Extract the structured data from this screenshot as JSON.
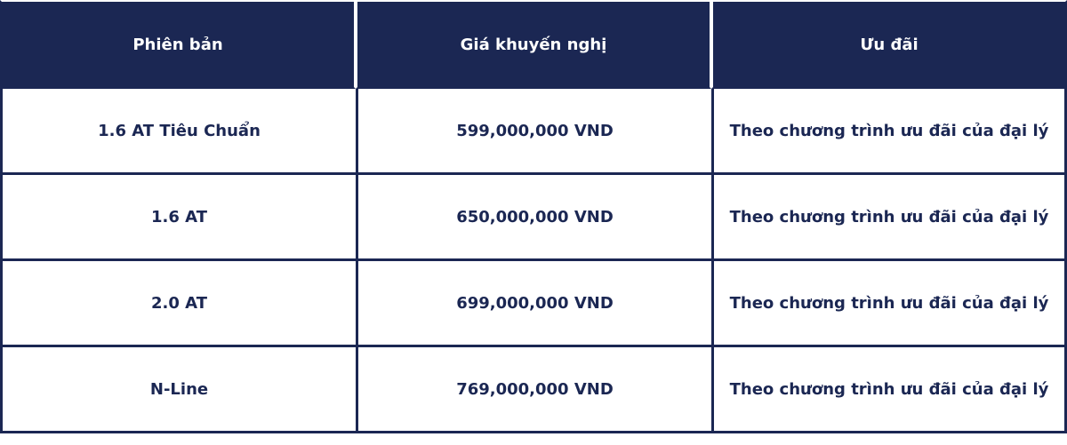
{
  "table": {
    "headers": [
      "Phiên bản",
      "Giá khuyến nghị",
      "Ưu đãi"
    ],
    "rows": [
      [
        "1.6 AT Tiêu Chuẩn",
        "599,000,000 VND",
        "Theo chương trình ưu đãi của đại lý"
      ],
      [
        "1.6 AT",
        "650,000,000 VND",
        "Theo chương trình ưu đãi của đại lý"
      ],
      [
        "2.0 AT",
        "699,000,000 VND",
        "Theo chương trình ưu đãi của đại lý"
      ],
      [
        "N-Line",
        "769,000,000 VND",
        "Theo chương trình ưu đãi của đại lý"
      ]
    ]
  },
  "colors": {
    "header_bg": "#1b2753",
    "text": "#1b2753"
  }
}
